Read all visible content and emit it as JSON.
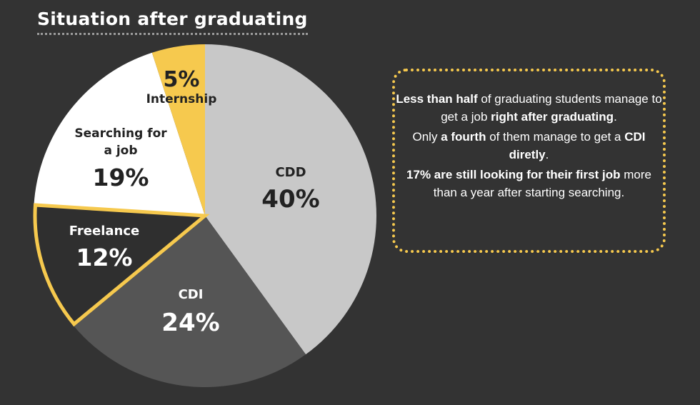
{
  "title": "Situation after graduating",
  "colors": {
    "background": "#333333",
    "accent": "#f6c94e",
    "light_gray": "#c8c8c8",
    "mid_gray": "#555555",
    "dark": "#2f2f2f",
    "white": "#ffffff"
  },
  "chart_data": {
    "type": "pie",
    "title": "Situation after graduating",
    "slices": [
      {
        "label": "CDD",
        "label_lines": [
          "CDD"
        ],
        "value": 40,
        "value_label": "40%",
        "color": "#c8c8c8",
        "text_color": "#222222"
      },
      {
        "label": "CDI",
        "label_lines": [
          "CDI"
        ],
        "value": 24,
        "value_label": "24%",
        "color": "#555555",
        "text_color": "#ffffff"
      },
      {
        "label": "Freelance",
        "label_lines": [
          "Freelance"
        ],
        "value": 12,
        "value_label": "12%",
        "color": "#2f2f2f",
        "text_color": "#ffffff",
        "outlined": true
      },
      {
        "label": "Searching for a job",
        "label_lines": [
          "Searching for",
          "a job"
        ],
        "value": 19,
        "value_label": "19%",
        "color": "#ffffff",
        "text_color": "#222222"
      },
      {
        "label": "Internship",
        "label_lines": [
          "Internship"
        ],
        "value": 5,
        "value_label": "5%",
        "color": "#f6c94e",
        "text_color": "#222222"
      }
    ]
  },
  "callout": {
    "p1": {
      "bold1": "Less than half",
      "text1": " of graduating students  manage to get a job ",
      "bold2": "right after graduating",
      "text2": "."
    },
    "p2": {
      "text1": "Only ",
      "bold1": "a fourth",
      "text2": " of them manage to get a ",
      "bold2": "CDI diretly",
      "text3": "."
    },
    "p3": {
      "bold1": "17% are still looking for their first job",
      "text1": " more than a year after starting searching."
    }
  }
}
